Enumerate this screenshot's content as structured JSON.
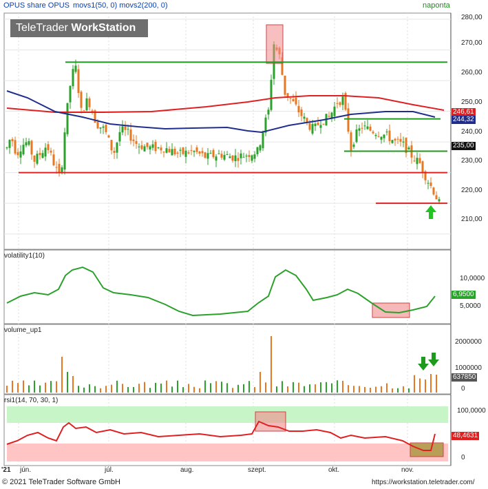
{
  "header": {
    "title": "OPUS share OPUS",
    "indicators": "movs1(50, 0)  movs2(200, 0)",
    "period": "naponta"
  },
  "logo": {
    "prefix": "TeleTrader ",
    "brand": "WorkStation"
  },
  "colors": {
    "bull": "#2aa12a",
    "bear": "#e87722",
    "mov50": "#1f2e8c",
    "mov200": "#e02020",
    "volatility": "#2aa12a",
    "rsi": "#e02020",
    "zone_high": "#c8f5c8",
    "zone_low": "#ffc4c4",
    "highlight_fill": "#f08a8a",
    "green_level": "#1e9a1e",
    "red_level": "#e02020",
    "arrow": "#22c422"
  },
  "price_panel": {
    "y_ticks": [
      "280,00",
      "270,00",
      "260,00",
      "250,00",
      "240,00",
      "230,00",
      "220,00",
      "210,00"
    ],
    "tags": {
      "mov200": "246,61",
      "mov50": "244,32",
      "last": "235,00"
    }
  },
  "volatility_panel": {
    "label": "volatility1(10)",
    "y_ticks": [
      "10,0000",
      "5,0000"
    ],
    "tag": "6,9500"
  },
  "volume_panel": {
    "label": "volume_up1",
    "y_ticks": [
      "2000000",
      "1000000",
      "0"
    ],
    "tag": "637850"
  },
  "rsi_panel": {
    "label": "rsi1(14, 70, 30, 1)",
    "y_ticks": [
      "100,0000",
      "0"
    ],
    "tag": "48,4631"
  },
  "x_axis": [
    "'21",
    "jún.",
    "júl.",
    "aug.",
    "szept.",
    "okt.",
    "nov."
  ],
  "footer": {
    "copyright": "© 2021 TeleTrader Software GmbH",
    "url": "https://workstation.teletrader.com/"
  },
  "chart_data": {
    "type": "candlestick",
    "title": "OPUS share OPUS",
    "ylim": [
      205,
      282
    ],
    "levels": {
      "green": [
        266,
        247.5,
        237
      ],
      "red": [
        230,
        220
      ]
    },
    "moving_average_50_last": 244.32,
    "moving_average_200_last": 246.61,
    "last_close": 235.0,
    "volatility_last": 6.95,
    "volume_last": 637850,
    "rsi_last": 48.4631,
    "rsi_bands": [
      70,
      30
    ]
  }
}
